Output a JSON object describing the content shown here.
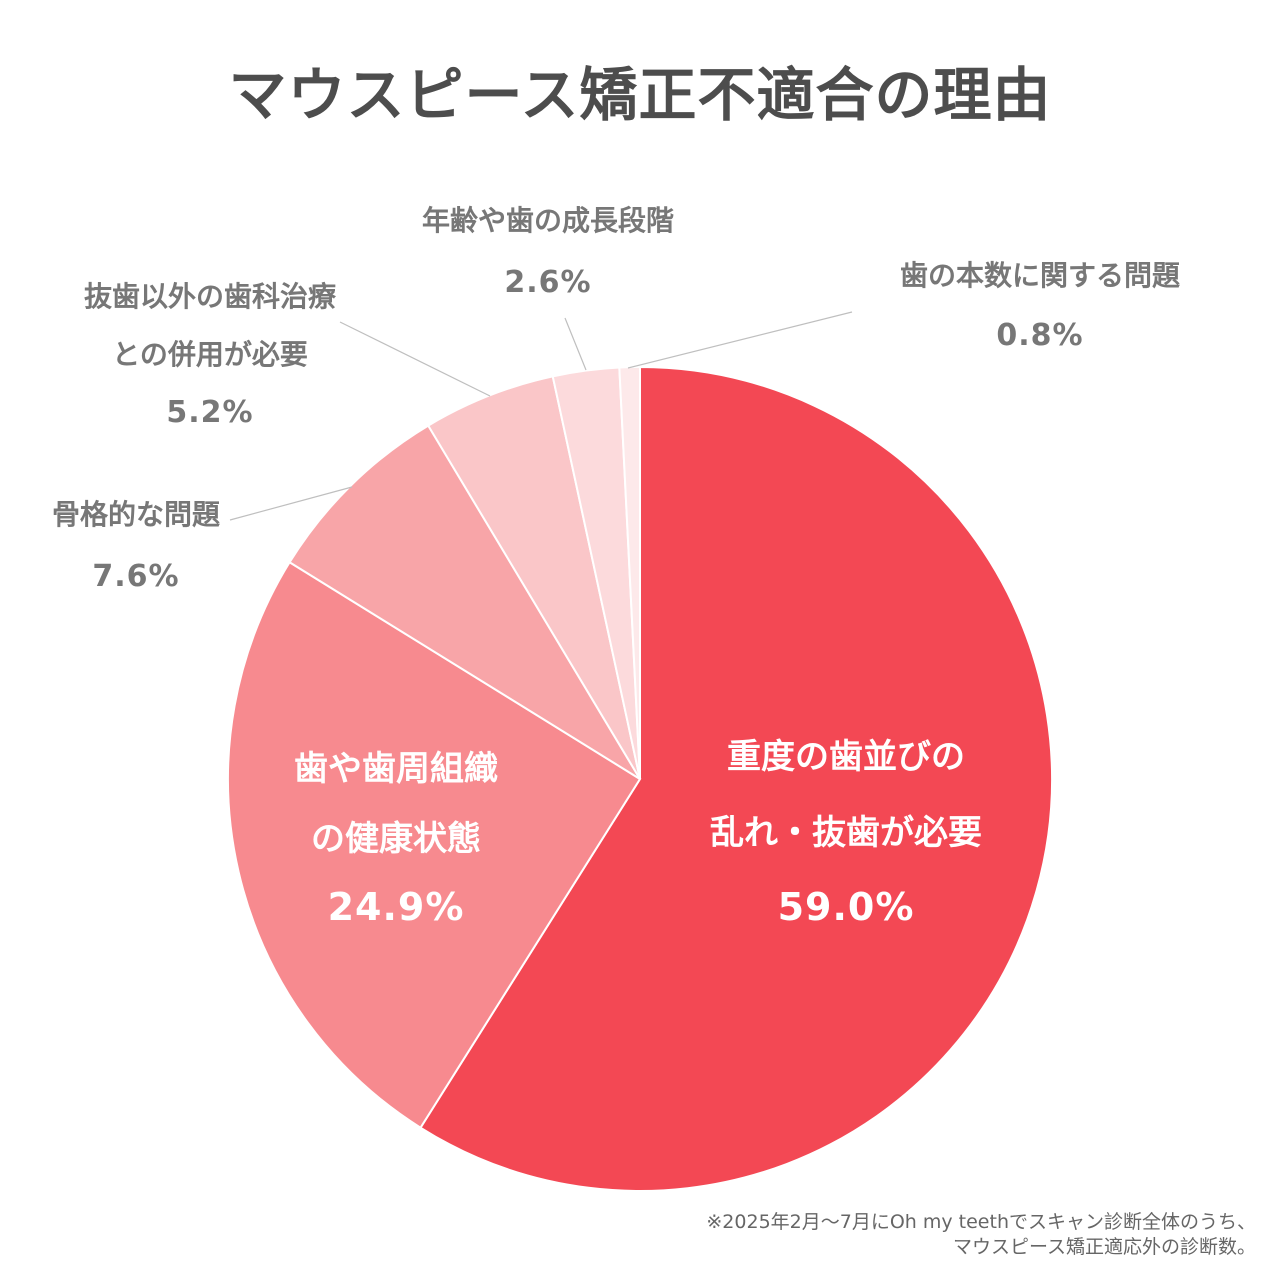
{
  "chart_data": {
    "type": "pie",
    "title": "マウスピース矯正不適合の理由",
    "slices": [
      {
        "label_lines": [
          "重度の歯並びの",
          "乱れ・抜歯が必要"
        ],
        "value": 59.0,
        "value_label": "59.0%",
        "color": "#f34854"
      },
      {
        "label_lines": [
          "歯や歯周組織",
          "の健康状態"
        ],
        "value": 24.9,
        "value_label": "24.9%",
        "color": "#f78a8f"
      },
      {
        "label_lines": [
          "骨格的な問題"
        ],
        "value": 7.6,
        "value_label": "7.6%",
        "color": "#f8a5a8"
      },
      {
        "label_lines": [
          "抜歯以外の歯科治療",
          "との併用が必要"
        ],
        "value": 5.2,
        "value_label": "5.2%",
        "color": "#fac6c8"
      },
      {
        "label_lines": [
          "年齢や歯の成長段階"
        ],
        "value": 2.6,
        "value_label": "2.6%",
        "color": "#fcdadc"
      },
      {
        "label_lines": [
          "歯の本数に関する問題"
        ],
        "value": 0.8,
        "value_label": "0.8%",
        "color": "#fde9ea"
      }
    ]
  },
  "footnote": {
    "line1": "※2025年2月～7月にOh my teethでスキャン診断全体のうち、",
    "line2": "マウスピース矯正適応外の診断数。"
  }
}
